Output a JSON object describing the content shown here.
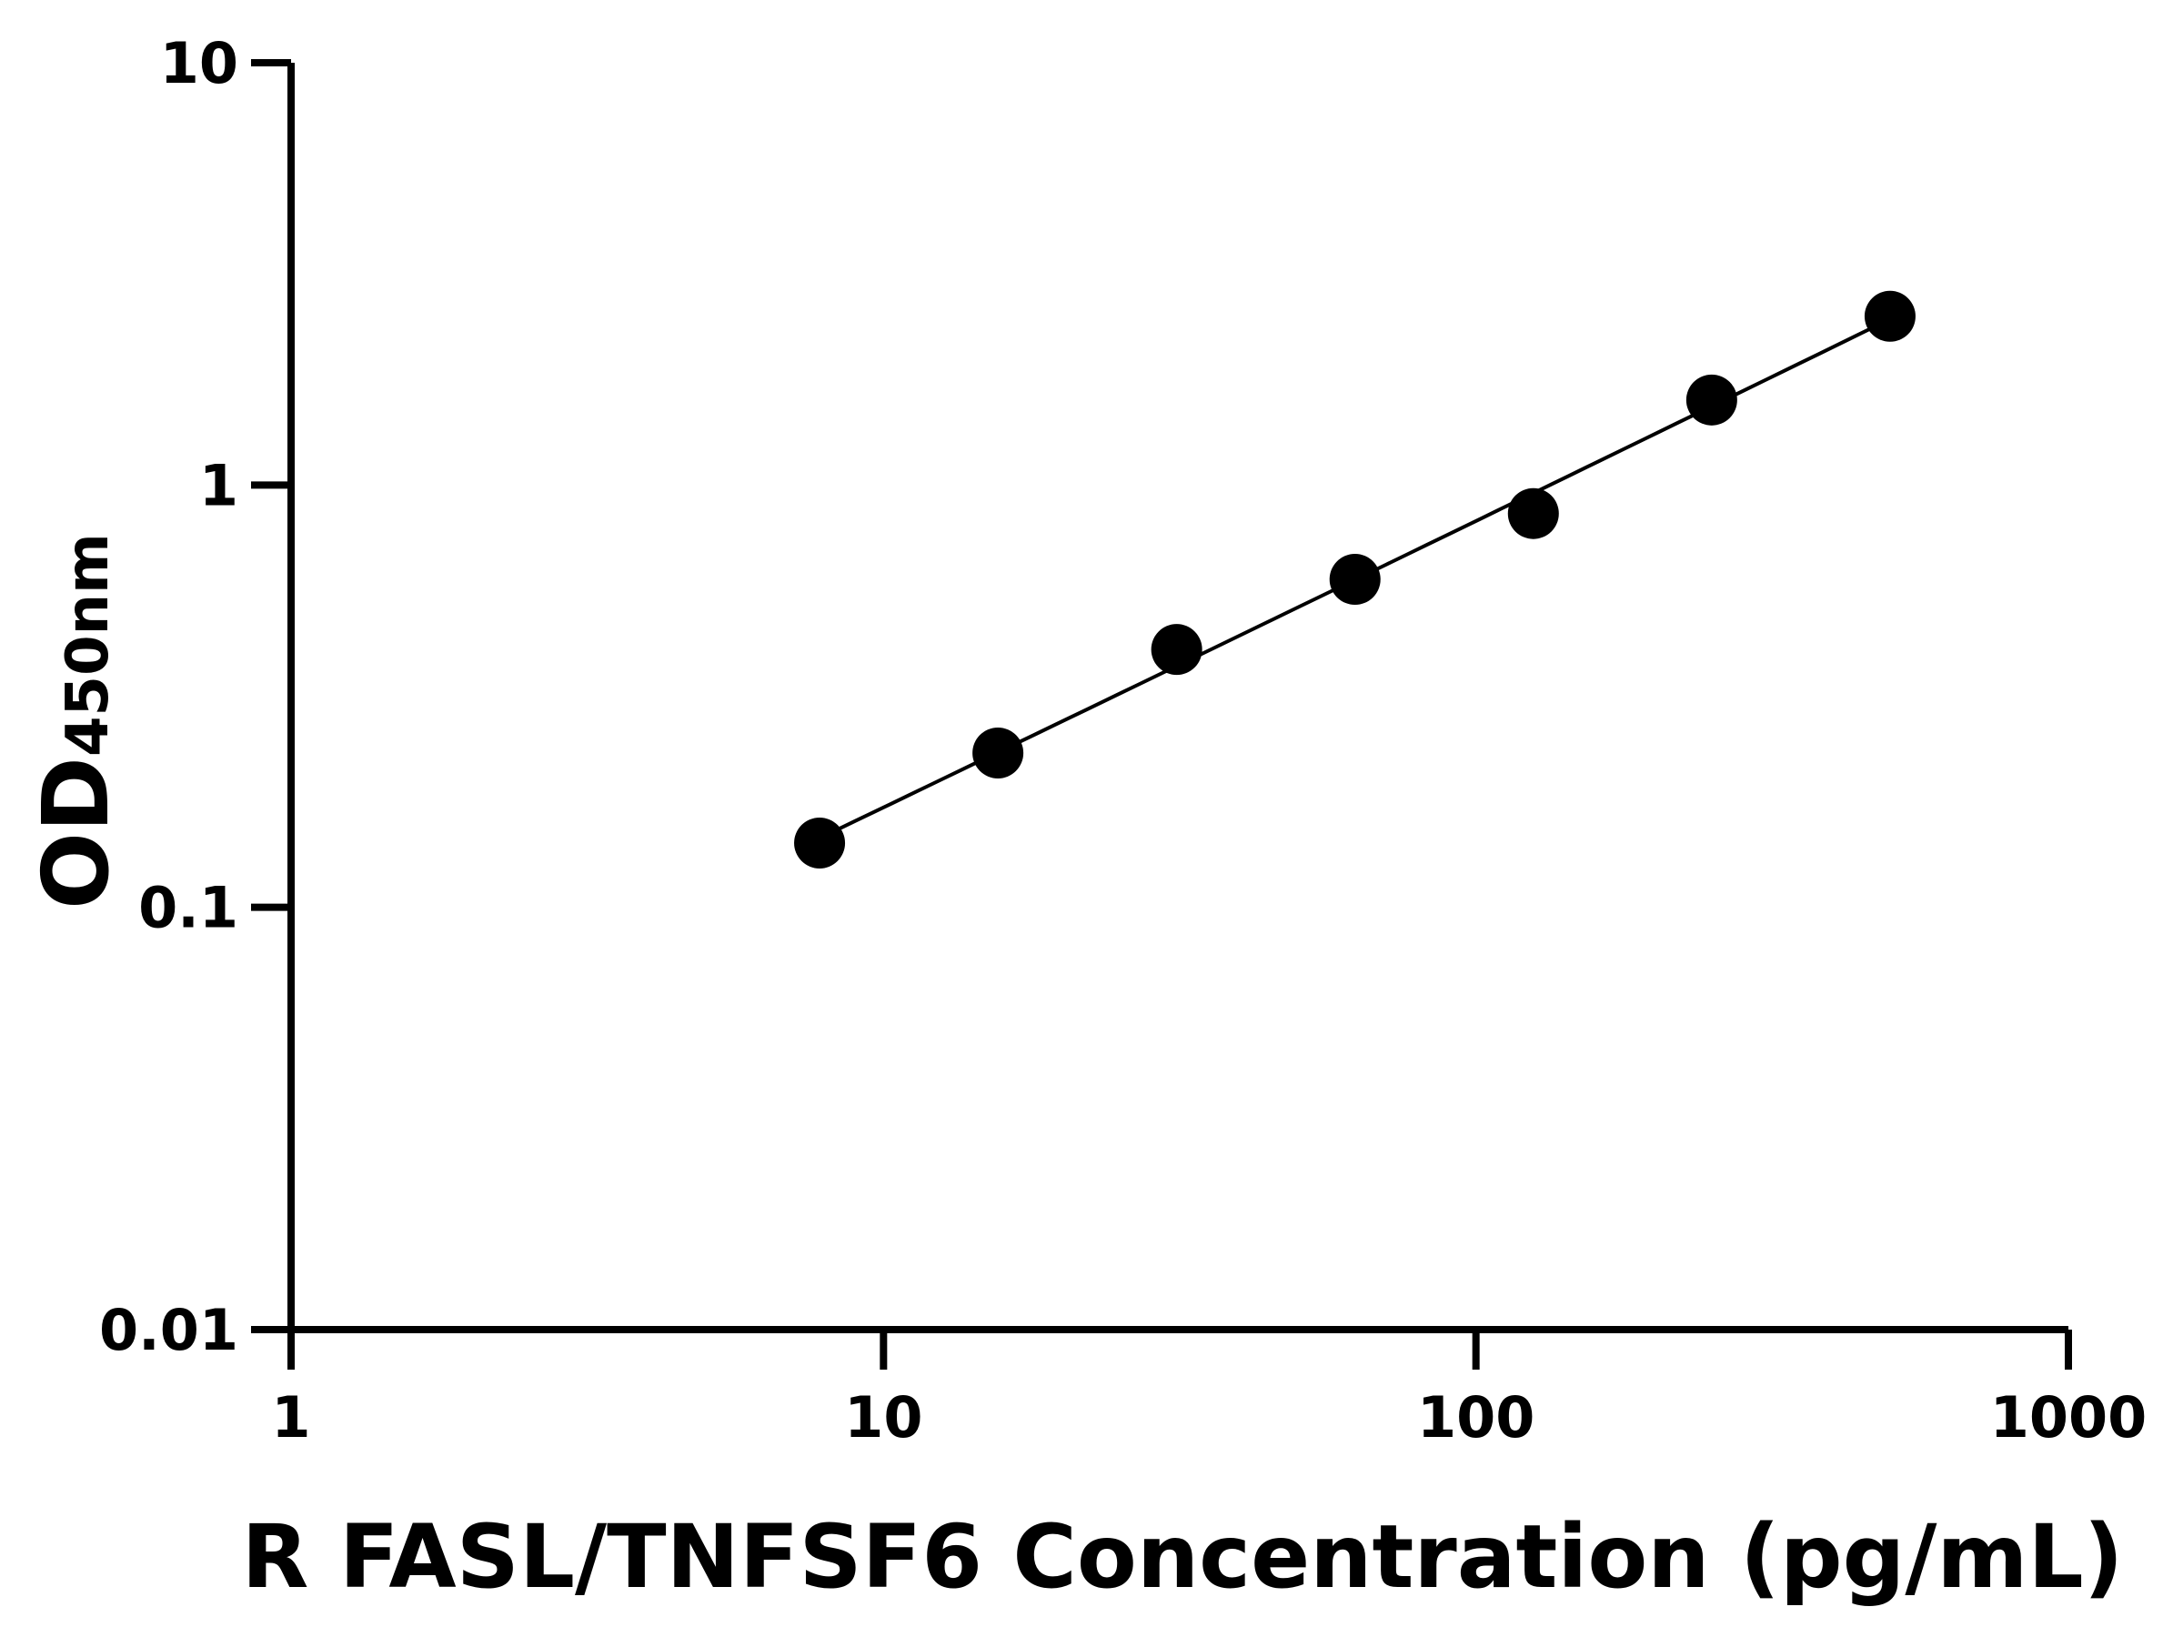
{
  "chart_data": {
    "type": "scatter",
    "title": "",
    "xlabel": "R FASL/TNFSF6 Concentration (pg/mL)",
    "ylabel_main": "OD",
    "ylabel_sub": "450nm",
    "x_scale": "log",
    "y_scale": "log",
    "xlim": [
      1,
      1000
    ],
    "ylim": [
      0.01,
      10
    ],
    "x_ticks": [
      "1",
      "10",
      "100",
      "1000"
    ],
    "y_ticks": [
      "0.01",
      "0.1",
      "1",
      "10"
    ],
    "grid": false,
    "legend": "none",
    "marker_color": "#000000",
    "line_color": "#000000",
    "series": [
      {
        "x": [
          7.8,
          15.6,
          31.25,
          62.5,
          125,
          250,
          500
        ],
        "y": [
          0.142,
          0.232,
          0.408,
          0.598,
          0.856,
          1.59,
          2.51
        ],
        "fit": "smooth curve"
      }
    ]
  }
}
